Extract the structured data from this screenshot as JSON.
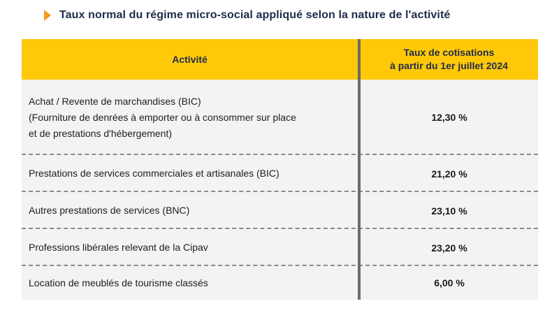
{
  "title": "Taux normal du régime micro-social appliqué selon la nature de l'activité",
  "table": {
    "headers": {
      "activity": "Activité",
      "rate_line1": "Taux de cotisations",
      "rate_line2": "à partir du 1er juillet 2024"
    },
    "rows": [
      {
        "lines": [
          "Achat / Revente de marchandises (BIC)",
          "(Fourniture de denrées à emporter ou à consommer sur place",
          "et de prestations d'hébergement)"
        ],
        "rate": "12,30 %"
      },
      {
        "lines": [
          "Prestations de services commerciales et artisanales (BIC)"
        ],
        "rate": "21,20 %"
      },
      {
        "lines": [
          "Autres prestations de services (BNC)"
        ],
        "rate": "23,10 %"
      },
      {
        "lines": [
          "Professions libérales relevant de la Cipav"
        ],
        "rate": "23,20 %"
      },
      {
        "lines": [
          "Location de meublés de tourisme classés"
        ],
        "rate": "6,00 %"
      }
    ]
  },
  "colors": {
    "header_bg": "#ffc809",
    "arrow": "#f39a1f",
    "title": "#1f2b4c",
    "body_bg": "#f3f3f3"
  }
}
